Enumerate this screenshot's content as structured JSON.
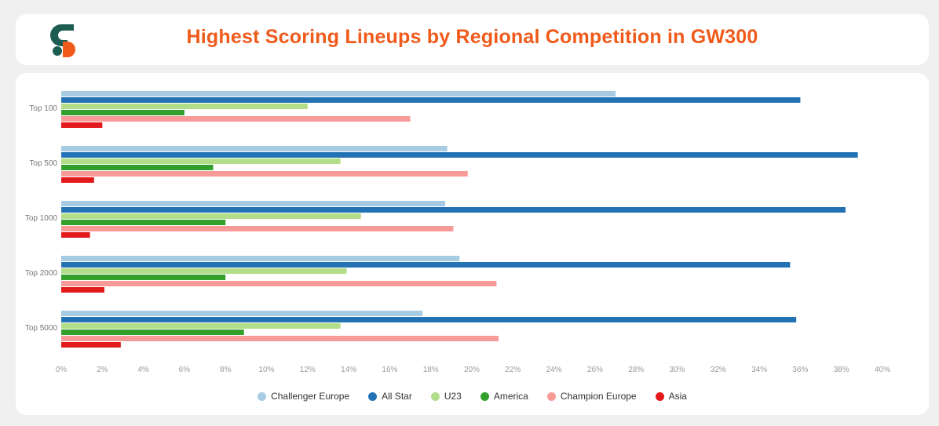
{
  "header": {
    "title": "Highest Scoring Lineups by Regional Competition in GW300",
    "logo_colors": {
      "dark": "#1e5c52",
      "accent": "#f05a1a"
    }
  },
  "chart_data": {
    "type": "bar",
    "orientation": "horizontal",
    "title": "Highest Scoring Lineups by Regional Competition in GW300",
    "categories": [
      "Top 100",
      "Top 500",
      "Top 1000",
      "Top 2000",
      "Top 5000"
    ],
    "xlim": [
      0,
      40
    ],
    "x_ticks": [
      0,
      2,
      4,
      6,
      8,
      10,
      12,
      14,
      16,
      18,
      20,
      22,
      24,
      26,
      28,
      30,
      32,
      34,
      36,
      38,
      40
    ],
    "tick_suffix": "%",
    "legend_position": "bottom",
    "series": [
      {
        "name": "Challenger Europe",
        "color": "#a6cbe3",
        "values": [
          27.0,
          18.8,
          18.7,
          19.4,
          17.6
        ]
      },
      {
        "name": "All Star",
        "color": "#2272b4",
        "values": [
          36.0,
          38.8,
          38.2,
          35.5,
          35.8
        ]
      },
      {
        "name": "U23",
        "color": "#b2de8a",
        "values": [
          12.0,
          13.6,
          14.6,
          13.9,
          13.6
        ]
      },
      {
        "name": "America",
        "color": "#33a02c",
        "values": [
          6.0,
          7.4,
          8.0,
          8.0,
          8.9
        ]
      },
      {
        "name": "Champion Europe",
        "color": "#f79a98",
        "values": [
          17.0,
          19.8,
          19.1,
          21.2,
          21.3
        ]
      },
      {
        "name": "Asia",
        "color": "#e31a1c",
        "values": [
          2.0,
          1.6,
          1.4,
          2.1,
          2.9
        ]
      }
    ]
  }
}
